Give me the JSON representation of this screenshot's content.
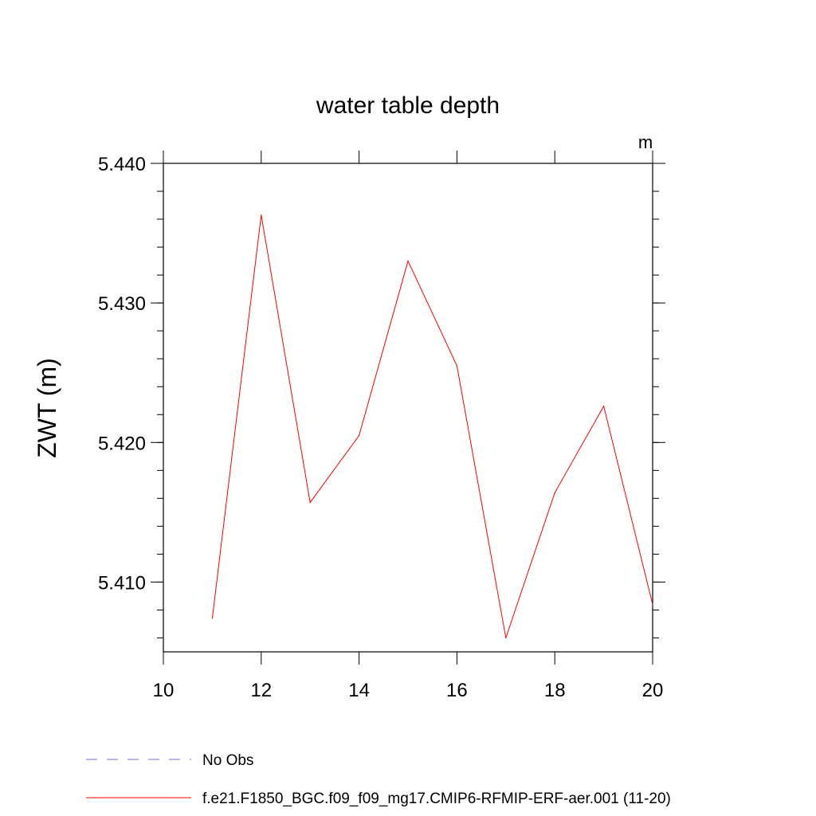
{
  "chart_data": {
    "type": "line",
    "title": "water table depth",
    "ylabel": "ZWT  (m)",
    "units": "m",
    "xlim": [
      10,
      20
    ],
    "ylim": [
      5.405,
      5.44
    ],
    "x_ticks": [
      "10",
      "12",
      "14",
      "16",
      "18",
      "20"
    ],
    "y_ticks": [
      "5.410",
      "5.420",
      "5.430",
      "5.440"
    ],
    "grid": false,
    "series": [
      {
        "name": "f.e21.F1850_BGC.f09_f09_mg17.CMIP6-RFMIP-ERF-aer.001 (11-20)",
        "color": "#ff0000",
        "x": [
          11,
          12,
          13,
          14,
          15,
          16,
          17,
          18,
          19,
          20
        ],
        "y": [
          5.4074,
          5.4363,
          5.4157,
          5.4205,
          5.433,
          5.4255,
          5.406,
          5.4164,
          5.4226,
          5.4084
        ]
      }
    ],
    "legend": {
      "position": "bottom",
      "items": [
        {
          "label": "No Obs",
          "style": "dashed",
          "color": "#7b6fd0"
        },
        {
          "label": "f.e21.F1850_BGC.f09_f09_mg17.CMIP6-RFMIP-ERF-aer.001 (11-20)",
          "style": "solid",
          "color": "#ff0000"
        }
      ]
    }
  }
}
